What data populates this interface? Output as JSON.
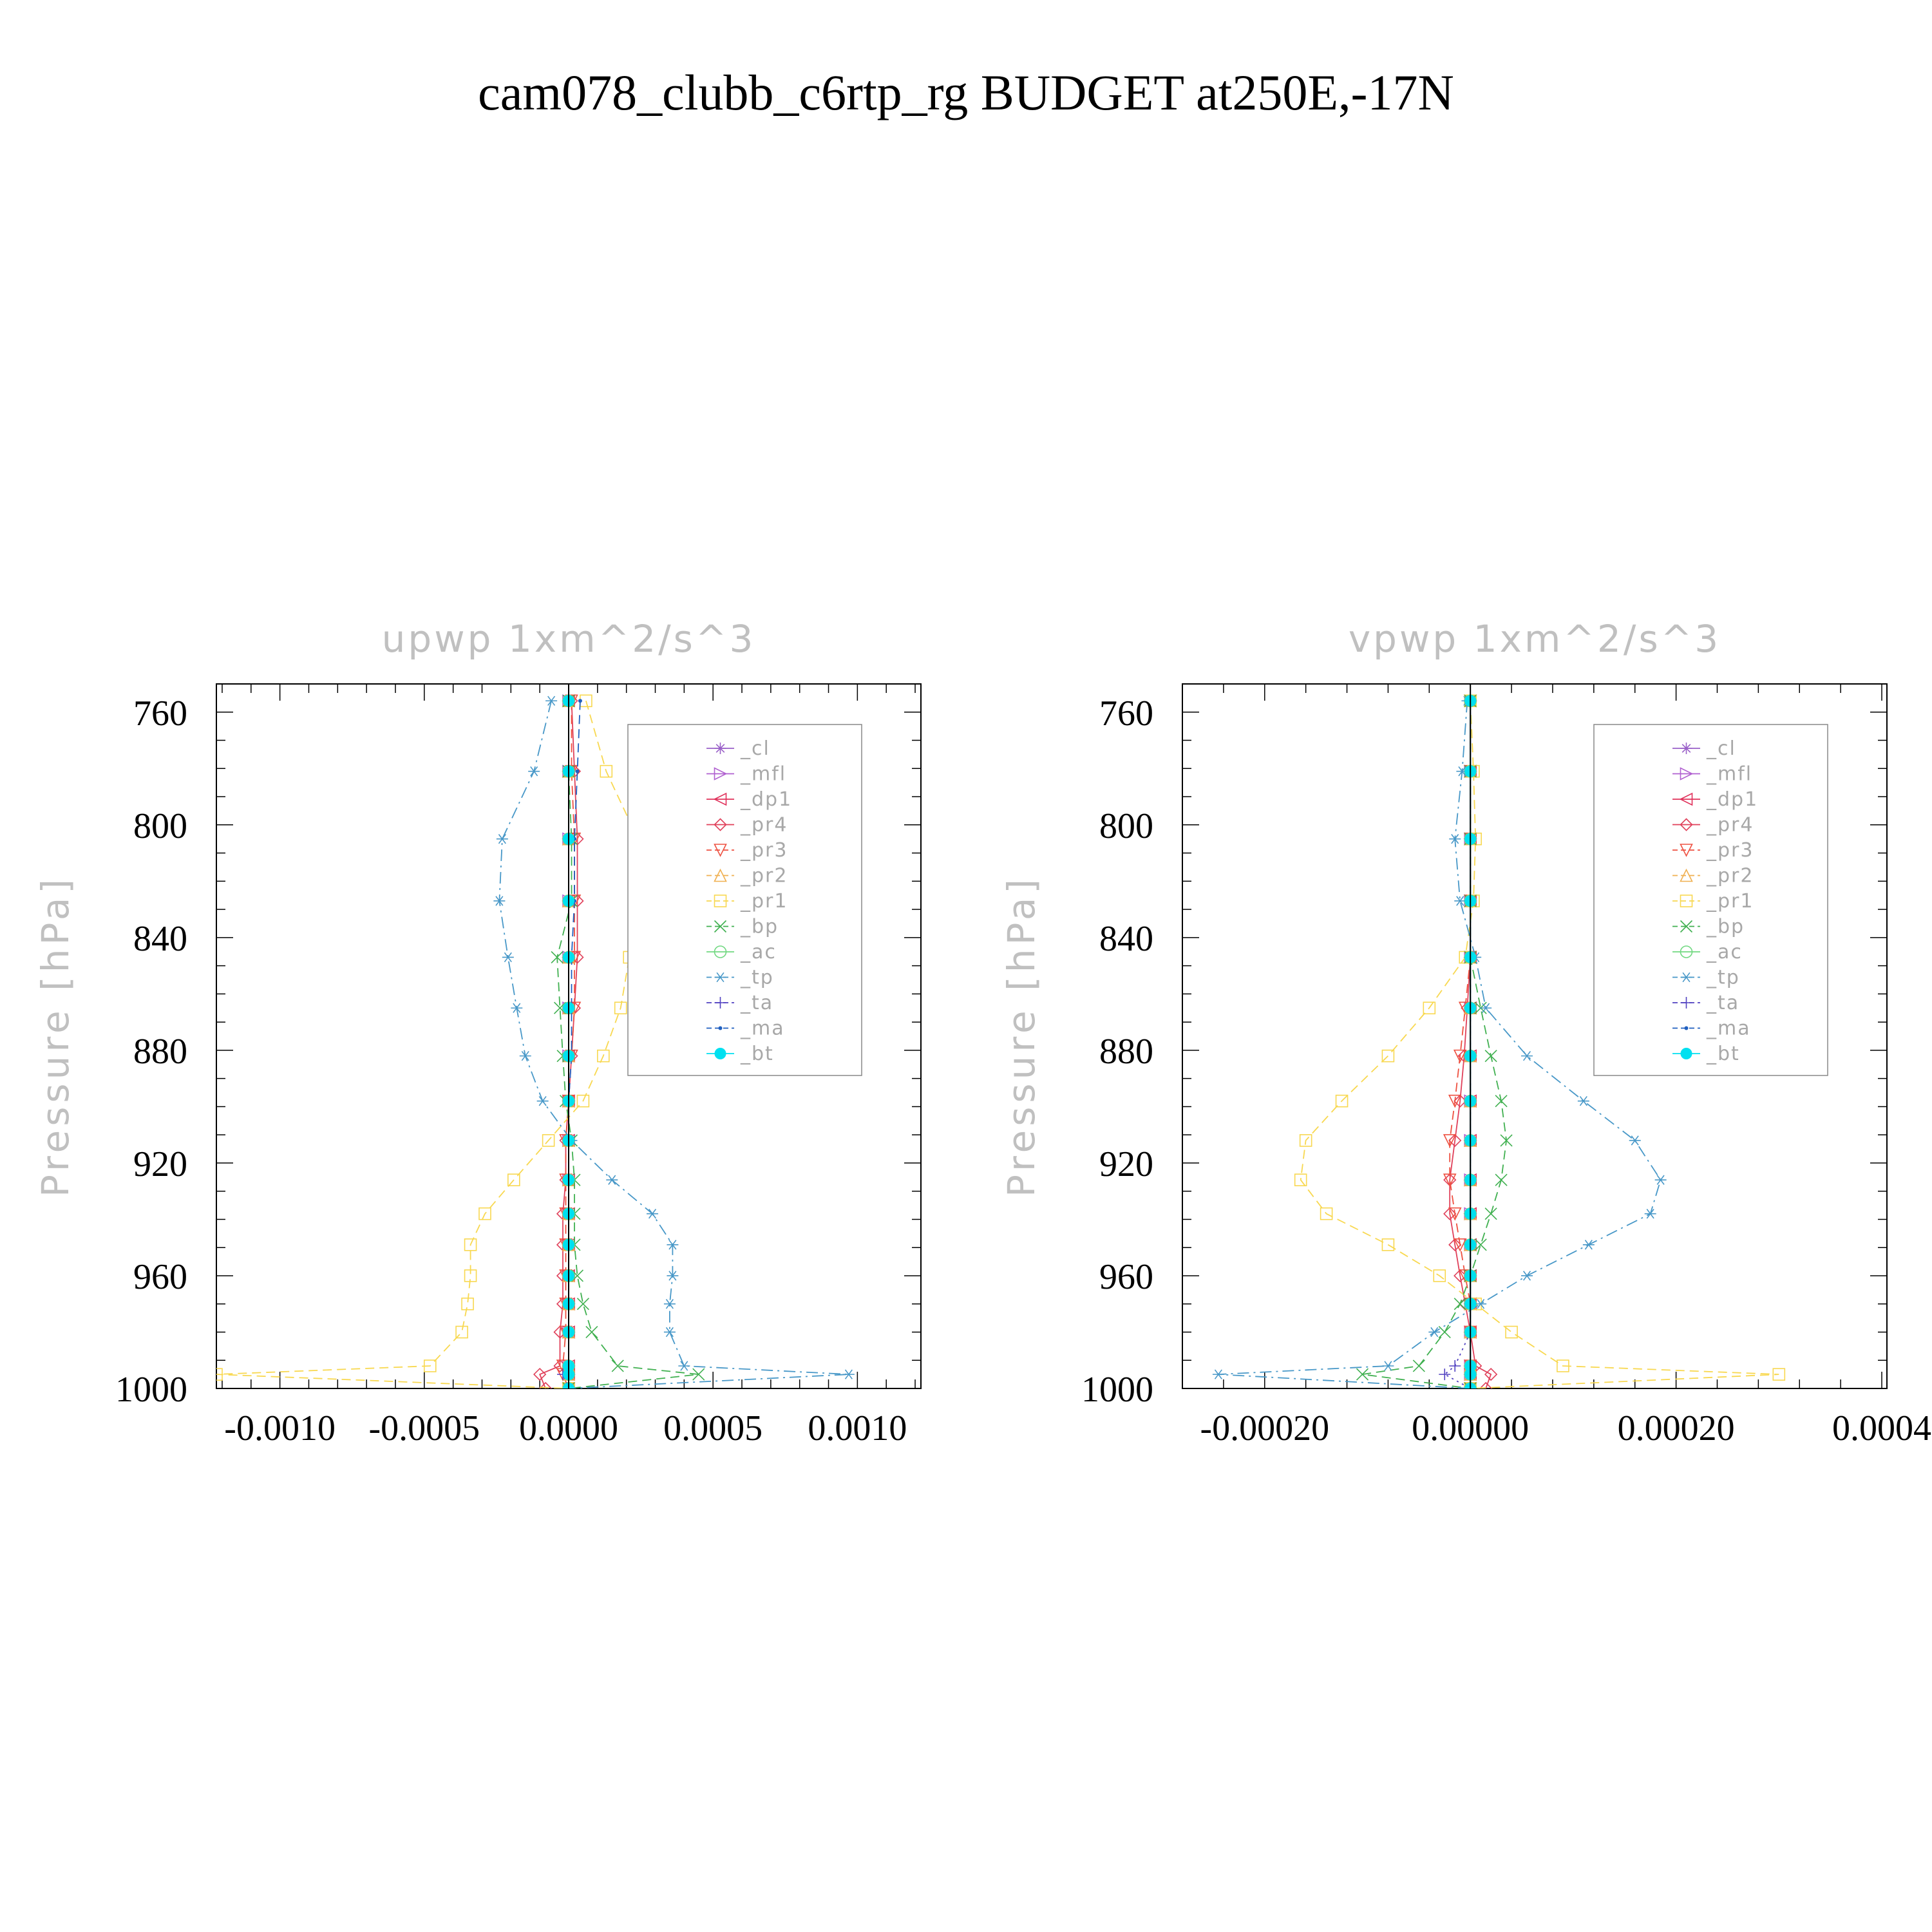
{
  "title": "cam078_clubb_c6rtp_rg  BUDGET at250E,-17N",
  "colors": {
    "_cl": "#9a60c8",
    "_mfl": "#b060d0",
    "_dp1": "#e0305a",
    "_pr4": "#e0405a",
    "_pr3": "#ee5040",
    "_pr2": "#f0b050",
    "_pr1": "#f8d850",
    "_bp": "#40b050",
    "_ac": "#70d880",
    "_tp": "#4898c8",
    "_ta": "#5040c0",
    "_ma": "#2060c0",
    "_bt": "#00e0f0",
    "axis_title": "#c0c0c0",
    "frame": "#000000",
    "legend_text": "#a8a8a8"
  },
  "chart_data": [
    {
      "type": "line",
      "title": "upwp    1xm^2/s^3",
      "ylabel": "Pressure  [hPa]",
      "y_reversed": true,
      "ylim": [
        1000,
        750
      ],
      "xlim": [
        -0.00122,
        0.00122
      ],
      "x_ticks": [
        -0.001,
        -0.0005,
        0.0,
        0.0005,
        0.001
      ],
      "x_tick_labels": [
        "-0.0010",
        "-0.0005",
        "0.0000",
        "0.0005",
        "0.0010"
      ],
      "y_ticks": [
        760,
        800,
        840,
        880,
        920,
        960,
        1000
      ],
      "y_tick_labels": [
        "760",
        "800",
        "840",
        "880",
        "920",
        "960",
        "1000"
      ],
      "legend_position": "top-right",
      "levels": [
        756,
        781,
        805,
        827,
        847,
        865,
        882,
        898,
        912,
        926,
        938,
        949,
        960,
        970,
        980,
        992,
        995,
        1000
      ],
      "series": [
        {
          "name": "_cl",
          "marker": "star",
          "line": "solid",
          "values": [
            0,
            0,
            0,
            0,
            0,
            0,
            0,
            0,
            0,
            0,
            0,
            0,
            0,
            0,
            0,
            0,
            0,
            0
          ]
        },
        {
          "name": "_mfl",
          "marker": "tri-right",
          "line": "solid",
          "values": [
            0,
            0,
            0,
            0,
            0,
            0,
            0,
            0,
            0,
            0,
            0,
            0,
            0,
            0,
            0,
            0,
            0,
            0
          ]
        },
        {
          "name": "_dp1",
          "marker": "tri-left",
          "line": "solid",
          "values": [
            0,
            0,
            0,
            0,
            0,
            0,
            0,
            0,
            0,
            0,
            0,
            0,
            0,
            0,
            0,
            0,
            0,
            0
          ]
        },
        {
          "name": "_pr4",
          "marker": "diamond",
          "line": "solid",
          "values": [
            1e-05,
            2e-05,
            3e-05,
            3e-05,
            3e-05,
            2e-05,
            1e-05,
            0.0,
            -1e-05,
            -1e-05,
            -2e-05,
            -2e-05,
            -2e-05,
            -2e-05,
            -3e-05,
            -3e-05,
            -0.0001,
            -8e-05
          ]
        },
        {
          "name": "_pr3",
          "marker": "tri-down",
          "line": "dashed",
          "values": [
            1e-05,
            1e-05,
            2e-05,
            2e-05,
            2e-05,
            2e-05,
            1e-05,
            0.0,
            -1e-05,
            -1e-05,
            -1e-05,
            -1e-05,
            -1e-05,
            -1e-05,
            -1e-05,
            -2e-05,
            -2e-05,
            0
          ]
        },
        {
          "name": "_pr2",
          "marker": "tri-up",
          "line": "dashed",
          "values": [
            0,
            0,
            0,
            0,
            0,
            0,
            0,
            0,
            0,
            0,
            0,
            0,
            0,
            0,
            0,
            0,
            0,
            0
          ]
        },
        {
          "name": "_pr1",
          "marker": "square",
          "line": "dashed",
          "values": [
            6e-05,
            0.00013,
            0.00024,
            0.00025,
            0.00021,
            0.00018,
            0.00012,
            5e-05,
            -7e-05,
            -0.00019,
            -0.00029,
            -0.00034,
            -0.00034,
            -0.00035,
            -0.00037,
            -0.00048,
            -0.00122,
            0
          ]
        },
        {
          "name": "_bp",
          "marker": "x",
          "line": "dashed",
          "values": [
            0,
            0,
            1e-05,
            1e-05,
            -4e-05,
            -3e-05,
            -2e-05,
            -1e-05,
            1e-05,
            2e-05,
            2e-05,
            2e-05,
            3e-05,
            5e-05,
            8e-05,
            0.00017,
            0.00045,
            0
          ]
        },
        {
          "name": "_ac",
          "marker": "circle",
          "line": "solid",
          "values": [
            0,
            0,
            0,
            0,
            0,
            0,
            0,
            0,
            0,
            0,
            0,
            0,
            0,
            0,
            0,
            0,
            0,
            0
          ]
        },
        {
          "name": "_tp",
          "marker": "asterisk",
          "line": "dashdot",
          "values": [
            -6e-05,
            -0.00012,
            -0.00023,
            -0.00024,
            -0.00021,
            -0.00018,
            -0.00015,
            -9e-05,
            1e-05,
            0.00015,
            0.00029,
            0.00036,
            0.00036,
            0.00035,
            0.00035,
            0.0004,
            0.00097,
            0
          ]
        },
        {
          "name": "_ta",
          "marker": "plus",
          "line": "dotted",
          "values": [
            0,
            0,
            0,
            0,
            0,
            0,
            0,
            0,
            0,
            0,
            0,
            0,
            0,
            0,
            0,
            0,
            -2e-05,
            0
          ]
        },
        {
          "name": "_ma",
          "marker": "dot",
          "line": "dashed",
          "values": [
            4e-05,
            3e-05,
            2e-05,
            2e-05,
            1e-05,
            1e-05,
            1e-05,
            0,
            0,
            0,
            0,
            0,
            0,
            0,
            0,
            0,
            0,
            0
          ]
        },
        {
          "name": "_bt",
          "marker": "filled-circle",
          "line": "solid",
          "values": [
            0,
            0,
            0,
            0,
            0,
            0,
            0,
            0,
            0,
            0,
            0,
            0,
            0,
            0,
            0,
            0,
            0,
            0
          ]
        }
      ]
    },
    {
      "type": "line",
      "title": "vpwp    1xm^2/s^3",
      "ylabel": "Pressure  [hPa]",
      "y_reversed": true,
      "ylim": [
        1000,
        750
      ],
      "xlim": [
        -0.00028,
        0.000405
      ],
      "x_ticks": [
        -0.0002,
        0.0,
        0.0002,
        0.0004
      ],
      "x_tick_labels": [
        "-0.00020",
        "0.00000",
        "0.00020",
        "0.0004"
      ],
      "y_ticks": [
        760,
        800,
        840,
        880,
        920,
        960,
        1000
      ],
      "y_tick_labels": [
        "760",
        "800",
        "840",
        "880",
        "920",
        "960",
        "1000"
      ],
      "legend_position": "top-right",
      "levels": [
        756,
        781,
        805,
        827,
        847,
        865,
        882,
        898,
        912,
        926,
        938,
        949,
        960,
        970,
        980,
        992,
        995,
        1000
      ],
      "series": [
        {
          "name": "_cl",
          "marker": "star",
          "line": "solid",
          "values": [
            0,
            0,
            0,
            0,
            0,
            0,
            0,
            0,
            0,
            0,
            0,
            0,
            0,
            0,
            0,
            0,
            0,
            0
          ]
        },
        {
          "name": "_mfl",
          "marker": "tri-right",
          "line": "solid",
          "values": [
            0,
            0,
            0,
            0,
            0,
            0,
            0,
            0,
            0,
            0,
            0,
            0,
            0,
            0,
            0,
            0,
            0,
            0
          ]
        },
        {
          "name": "_dp1",
          "marker": "tri-left",
          "line": "solid",
          "values": [
            0,
            0,
            0,
            0,
            0,
            0,
            0,
            0,
            0,
            0,
            0,
            0,
            0,
            0,
            0,
            0,
            0,
            0
          ]
        },
        {
          "name": "_pr4",
          "marker": "diamond",
          "line": "solid",
          "values": [
            0,
            0,
            0,
            0,
            0,
            -3e-06,
            -6e-06,
            -1e-05,
            -1.5e-05,
            -2e-05,
            -2e-05,
            -1.5e-05,
            -1e-05,
            -5e-06,
            0,
            5e-06,
            2e-05,
            1.5e-05
          ]
        },
        {
          "name": "_pr3",
          "marker": "tri-down",
          "line": "dashed",
          "values": [
            0,
            0,
            0,
            0,
            0,
            -5e-06,
            -1e-05,
            -1.5e-05,
            -2e-05,
            -2e-05,
            -1.5e-05,
            -1e-05,
            -5e-06,
            0,
            0,
            0,
            0,
            0
          ]
        },
        {
          "name": "_pr2",
          "marker": "tri-up",
          "line": "dashed",
          "values": [
            0,
            0,
            0,
            0,
            0,
            0,
            0,
            0,
            0,
            0,
            0,
            0,
            0,
            0,
            0,
            0,
            0,
            0
          ]
        },
        {
          "name": "_pr1",
          "marker": "square",
          "line": "dashed",
          "values": [
            0,
            3e-06,
            5e-06,
            3e-06,
            -5e-06,
            -4e-05,
            -8e-05,
            -0.000125,
            -0.00016,
            -0.000165,
            -0.00014,
            -8e-05,
            -3e-05,
            5e-06,
            4e-05,
            9e-05,
            0.0003,
            0
          ]
        },
        {
          "name": "_bp",
          "marker": "x",
          "line": "dashed",
          "values": [
            0,
            0,
            0,
            0,
            0,
            1e-05,
            2e-05,
            3e-05,
            3.5e-05,
            3e-05,
            2e-05,
            1e-05,
            0,
            -1e-05,
            -2.5e-05,
            -5e-05,
            -0.000105,
            0
          ]
        },
        {
          "name": "_ac",
          "marker": "circle",
          "line": "solid",
          "values": [
            0,
            0,
            0,
            0,
            0,
            0,
            0,
            0,
            0,
            0,
            0,
            0,
            0,
            0,
            0,
            0,
            0,
            0
          ]
        },
        {
          "name": "_tp",
          "marker": "asterisk",
          "line": "dashdot",
          "values": [
            -3e-06,
            -8e-06,
            -1.5e-05,
            -1e-05,
            5e-06,
            1.5e-05,
            5.5e-05,
            0.00011,
            0.00016,
            0.000185,
            0.000175,
            0.000115,
            5.5e-05,
            1e-05,
            -3.5e-05,
            -8e-05,
            -0.000245,
            0
          ]
        },
        {
          "name": "_ta",
          "marker": "plus",
          "line": "dotted",
          "values": [
            0,
            0,
            0,
            0,
            0,
            0,
            0,
            0,
            0,
            0,
            0,
            0,
            0,
            0,
            0,
            -1.5e-05,
            -2.5e-05,
            0
          ]
        },
        {
          "name": "_ma",
          "marker": "dot",
          "line": "dashed",
          "values": [
            0,
            0,
            0,
            0,
            0,
            0,
            0,
            0,
            0,
            0,
            0,
            0,
            0,
            0,
            0,
            0,
            0,
            0
          ]
        },
        {
          "name": "_bt",
          "marker": "filled-circle",
          "line": "solid",
          "values": [
            0,
            0,
            0,
            0,
            0,
            0,
            0,
            0,
            0,
            0,
            0,
            0,
            0,
            0,
            0,
            0,
            0,
            0
          ]
        }
      ]
    }
  ]
}
